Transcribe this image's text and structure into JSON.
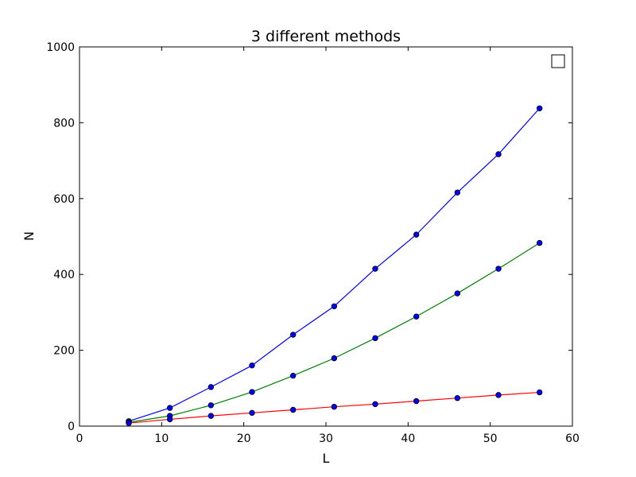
{
  "chart_data": {
    "type": "line",
    "title": "3 different methods",
    "xlabel": "L",
    "ylabel": "N",
    "xlim": [
      0,
      60
    ],
    "ylim": [
      0,
      1000
    ],
    "xticks": [
      0,
      10,
      20,
      30,
      40,
      50,
      60
    ],
    "yticks": [
      0,
      200,
      400,
      600,
      800,
      1000
    ],
    "grid": false,
    "legend": "top-right (empty)",
    "x": [
      6,
      11,
      16,
      21,
      26,
      31,
      36,
      41,
      46,
      51,
      56
    ],
    "series": [
      {
        "color": "#0000ff",
        "values": [
          13,
          48,
          103,
          160,
          241,
          316,
          415,
          505,
          616,
          717,
          838
        ]
      },
      {
        "color": "#008000",
        "values": [
          10,
          27,
          55,
          90,
          133,
          179,
          232,
          289,
          350,
          415,
          483
        ]
      },
      {
        "color": "#ff0000",
        "values": [
          8,
          18,
          27,
          35,
          43,
          51,
          58,
          66,
          74,
          82,
          89
        ]
      }
    ],
    "marker_color": "#0000ff"
  }
}
